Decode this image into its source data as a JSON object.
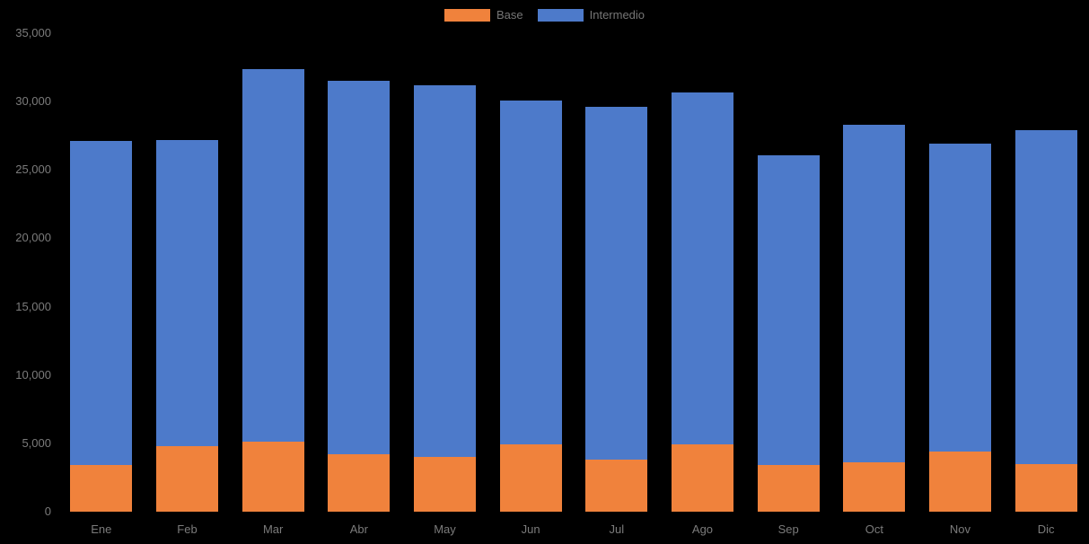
{
  "chart_data": {
    "type": "bar",
    "stacked": true,
    "title": "",
    "xlabel": "",
    "ylabel": "",
    "categories": [
      "Ene",
      "Feb",
      "Mar",
      "Abr",
      "May",
      "Jun",
      "Jul",
      "Ago",
      "Sep",
      "Oct",
      "Nov",
      "Dic"
    ],
    "series": [
      {
        "name": "Base",
        "color": "#F0823C",
        "values": [
          3400,
          4800,
          5100,
          4200,
          4000,
          4900,
          3800,
          4900,
          3400,
          3600,
          4400,
          3500
        ]
      },
      {
        "name": "Intermedio",
        "color": "#4D7ACA",
        "values": [
          23700,
          22400,
          27300,
          27300,
          27200,
          25200,
          25800,
          25800,
          22700,
          24700,
          22500,
          24400
        ]
      }
    ],
    "totals": [
      27100,
      27200,
      32400,
      31500,
      31200,
      30100,
      29600,
      30700,
      26100,
      28300,
      26900,
      27900
    ],
    "ylim": [
      0,
      35000
    ],
    "ytick_step": 5000,
    "ytick_labels": [
      "0",
      "5,000",
      "10,000",
      "15,000",
      "20,000",
      "25,000",
      "30,000",
      "35,000"
    ],
    "legend_position": "top",
    "grid": false,
    "colors": {
      "background": "#000000",
      "axis_label": "#7B7B7B",
      "legend_label": "#767676"
    }
  }
}
